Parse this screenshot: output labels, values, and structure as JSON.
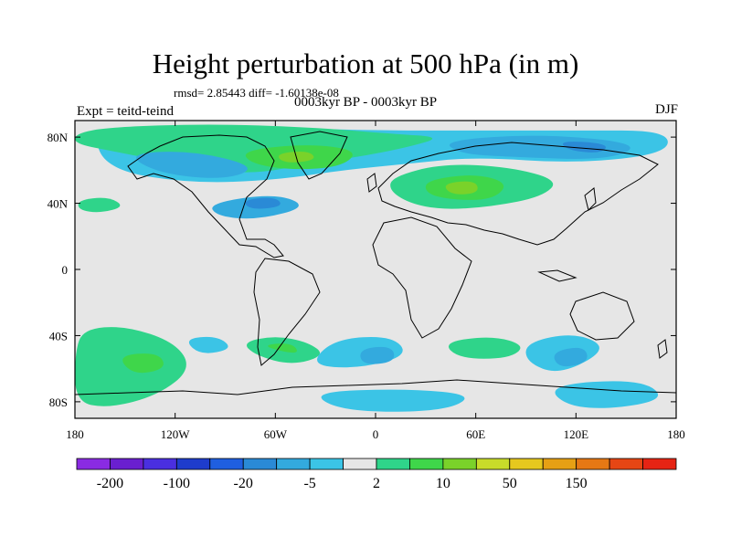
{
  "header": {
    "title": "Height perturbation at 500 hPa (in m)",
    "stats": "rmsd= 2.85443 diff= -1.60138e-08",
    "period": "0003kyr BP - 0003kyr BP",
    "experiment": "Expt = teitd-teind",
    "season": "DJF"
  },
  "chart_data": {
    "type": "heatmap",
    "title": "Height perturbation at 500 hPa (in m)",
    "xlabel": "",
    "ylabel": "",
    "x_range": [
      -180,
      180
    ],
    "y_range": [
      -90,
      90
    ],
    "x_ticks": [
      {
        "value": -180,
        "label": "180"
      },
      {
        "value": -120,
        "label": "120W"
      },
      {
        "value": -60,
        "label": "60W"
      },
      {
        "value": 0,
        "label": "0"
      },
      {
        "value": 60,
        "label": "60E"
      },
      {
        "value": 120,
        "label": "120E"
      },
      {
        "value": 180,
        "label": "180"
      }
    ],
    "y_ticks": [
      {
        "value": 80,
        "label": "80N"
      },
      {
        "value": 40,
        "label": "40N"
      },
      {
        "value": 0,
        "label": "0"
      },
      {
        "value": -40,
        "label": "40S"
      },
      {
        "value": -80,
        "label": "80S"
      }
    ],
    "colorbar": {
      "colors": [
        "#8a2be2",
        "#6a1fd0",
        "#4a2fe0",
        "#1e3ccc",
        "#1f5fe0",
        "#2a8ad6",
        "#33aade",
        "#3bc4e6",
        "#e6e6e6",
        "#2fd48a",
        "#3fd64a",
        "#7ad22a",
        "#c8dc2a",
        "#e6c81e",
        "#e6a014",
        "#e67814",
        "#e64614",
        "#e62414"
      ],
      "labels": [
        "-200",
        "-100",
        "-20",
        "-5",
        "2",
        "10",
        "50",
        "150"
      ],
      "label_after_box": [
        1,
        3,
        5,
        7,
        9,
        11,
        13,
        15
      ]
    },
    "regions": [
      {
        "level": 1,
        "fill": "#3bc4e6",
        "points": [
          [
            -170,
            82
          ],
          [
            -140,
            84
          ],
          [
            -80,
            86
          ],
          [
            0,
            84
          ],
          [
            60,
            84
          ],
          [
            120,
            84
          ],
          [
            175,
            84
          ],
          [
            175,
            70
          ],
          [
            120,
            64
          ],
          [
            60,
            68
          ],
          [
            20,
            64
          ],
          [
            -20,
            60
          ],
          [
            -60,
            54
          ],
          [
            -110,
            52
          ],
          [
            -160,
            60
          ]
        ]
      },
      {
        "level": 2,
        "fill": "#33aade",
        "points": [
          [
            -150,
            70
          ],
          [
            -110,
            72
          ],
          [
            -70,
            62
          ],
          [
            -90,
            54
          ],
          [
            -130,
            58
          ]
        ]
      },
      {
        "level": 2,
        "fill": "#33aade",
        "points": [
          [
            40,
            78
          ],
          [
            100,
            82
          ],
          [
            160,
            76
          ],
          [
            140,
            66
          ],
          [
            80,
            68
          ],
          [
            50,
            70
          ]
        ]
      },
      {
        "level": 2,
        "fill": "#33aade",
        "points": [
          [
            -100,
            40
          ],
          [
            -60,
            46
          ],
          [
            -40,
            38
          ],
          [
            -70,
            30
          ],
          [
            -95,
            32
          ]
        ]
      },
      {
        "level": 3,
        "fill": "#2a8ad6",
        "points": [
          [
            110,
            78
          ],
          [
            140,
            76
          ],
          [
            135,
            70
          ],
          [
            115,
            72
          ]
        ]
      },
      {
        "level": 3,
        "fill": "#2a8ad6",
        "points": [
          [
            -80,
            42
          ],
          [
            -60,
            44
          ],
          [
            -55,
            38
          ],
          [
            -75,
            36
          ]
        ]
      },
      {
        "level": 1,
        "fill": "#2fd48a",
        "points": [
          [
            -180,
            82
          ],
          [
            -160,
            86
          ],
          [
            -100,
            88
          ],
          [
            -40,
            86
          ],
          [
            10,
            82
          ],
          [
            40,
            80
          ],
          [
            20,
            74
          ],
          [
            -10,
            68
          ],
          [
            -40,
            64
          ],
          [
            -70,
            58
          ],
          [
            -100,
            60
          ],
          [
            -130,
            66
          ],
          [
            -160,
            72
          ],
          [
            -180,
            76
          ]
        ]
      },
      {
        "level": 1,
        "fill": "#2fd48a",
        "points": [
          [
            10,
            56
          ],
          [
            40,
            64
          ],
          [
            80,
            62
          ],
          [
            110,
            54
          ],
          [
            100,
            44
          ],
          [
            70,
            38
          ],
          [
            40,
            36
          ],
          [
            20,
            40
          ],
          [
            8,
            48
          ]
        ]
      },
      {
        "level": 1,
        "fill": "#2fd48a",
        "points": [
          [
            -178,
            42
          ],
          [
            -160,
            44
          ],
          [
            -150,
            38
          ],
          [
            -165,
            34
          ],
          [
            -178,
            36
          ]
        ]
      },
      {
        "level": 1,
        "fill": "#2fd48a",
        "points": [
          [
            -175,
            -36
          ],
          [
            -150,
            -34
          ],
          [
            -120,
            -44
          ],
          [
            -110,
            -60
          ],
          [
            -130,
            -76
          ],
          [
            -160,
            -84
          ],
          [
            -180,
            -80
          ],
          [
            -180,
            -50
          ]
        ]
      },
      {
        "level": 1,
        "fill": "#2fd48a",
        "points": [
          [
            -80,
            -44
          ],
          [
            -60,
            -40
          ],
          [
            -40,
            -44
          ],
          [
            -30,
            -52
          ],
          [
            -50,
            -58
          ],
          [
            -72,
            -52
          ]
        ]
      },
      {
        "level": 1,
        "fill": "#2fd48a",
        "points": [
          [
            40,
            -44
          ],
          [
            70,
            -40
          ],
          [
            90,
            -46
          ],
          [
            80,
            -54
          ],
          [
            50,
            -54
          ]
        ]
      },
      {
        "level": 2,
        "fill": "#3fd64a",
        "points": [
          [
            -80,
            72
          ],
          [
            -40,
            76
          ],
          [
            -10,
            72
          ],
          [
            -20,
            62
          ],
          [
            -50,
            60
          ],
          [
            -75,
            64
          ]
        ]
      },
      {
        "level": 2,
        "fill": "#3fd64a",
        "points": [
          [
            30,
            54
          ],
          [
            60,
            58
          ],
          [
            80,
            52
          ],
          [
            70,
            42
          ],
          [
            45,
            42
          ],
          [
            30,
            46
          ]
        ]
      },
      {
        "level": 2,
        "fill": "#3fd64a",
        "points": [
          [
            -155,
            -52
          ],
          [
            -130,
            -50
          ],
          [
            -125,
            -60
          ],
          [
            -145,
            -64
          ]
        ]
      },
      {
        "level": 2,
        "fill": "#3fd64a",
        "points": [
          [
            -70,
            -46
          ],
          [
            -50,
            -44
          ],
          [
            -45,
            -52
          ],
          0
        ]
      },
      {
        "level": 3,
        "fill": "#7ad22a",
        "points": [
          [
            -60,
            70
          ],
          [
            -40,
            72
          ],
          [
            -35,
            66
          ],
          [
            -55,
            64
          ]
        ]
      },
      {
        "level": 3,
        "fill": "#7ad22a",
        "points": [
          [
            40,
            52
          ],
          [
            60,
            54
          ],
          [
            62,
            46
          ],
          [
            45,
            45
          ]
        ]
      },
      {
        "level": 1,
        "fill": "#3bc4e6",
        "points": [
          [
            -115,
            -42
          ],
          [
            -95,
            -40
          ],
          [
            -85,
            -48
          ],
          [
            -105,
            -52
          ]
        ]
      },
      {
        "level": 1,
        "fill": "#3bc4e6",
        "points": [
          [
            -25,
            -42
          ],
          [
            10,
            -40
          ],
          [
            20,
            -52
          ],
          [
            -10,
            -60
          ],
          [
            -40,
            -58
          ]
        ]
      },
      {
        "level": 1,
        "fill": "#3bc4e6",
        "points": [
          [
            -40,
            -74
          ],
          [
            20,
            -72
          ],
          [
            60,
            -76
          ],
          [
            40,
            -86
          ],
          [
            -20,
            -86
          ]
        ]
      },
      {
        "level": 1,
        "fill": "#3bc4e6",
        "points": [
          [
            90,
            -44
          ],
          [
            120,
            -38
          ],
          [
            140,
            -48
          ],
          [
            110,
            -64
          ],
          [
            90,
            -56
          ]
        ]
      },
      {
        "level": 1,
        "fill": "#3bc4e6",
        "points": [
          [
            100,
            -70
          ],
          [
            160,
            -66
          ],
          [
            175,
            -80
          ],
          [
            120,
            -86
          ]
        ]
      },
      {
        "level": 2,
        "fill": "#33aade",
        "points": [
          [
            -10,
            -48
          ],
          [
            10,
            -46
          ],
          [
            12,
            -56
          ],
          [
            -8,
            -58
          ]
        ]
      },
      {
        "level": 2,
        "fill": "#33aade",
        "points": [
          [
            105,
            -50
          ],
          [
            125,
            -46
          ],
          [
            128,
            -56
          ],
          [
            110,
            -60
          ]
        ]
      }
    ]
  }
}
